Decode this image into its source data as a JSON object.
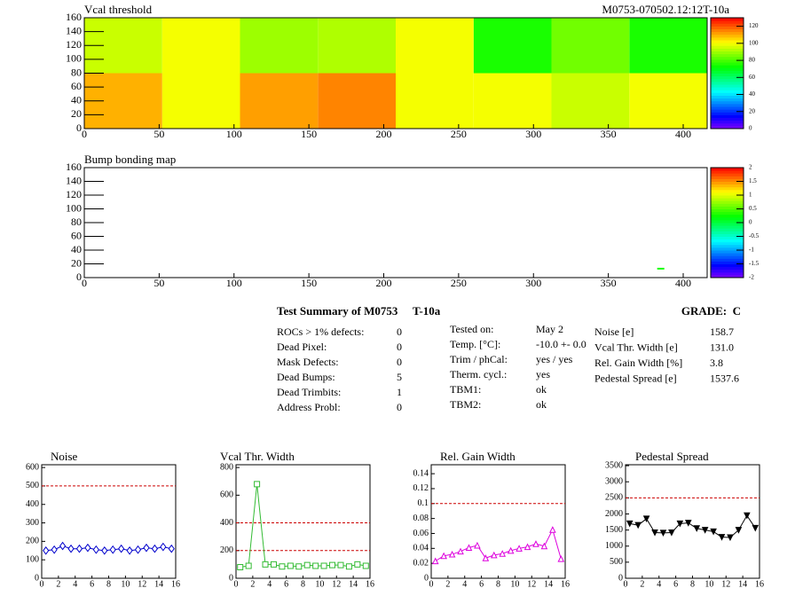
{
  "chart_data": [
    {
      "type": "heatmap",
      "title": "Vcal threshold",
      "subtitle": "M0753-070502.12:12T-10a",
      "x": [
        0,
        52,
        104,
        156,
        208,
        260,
        312,
        364,
        416
      ],
      "y": [
        0,
        80,
        160
      ],
      "values": [
        [
          110,
          100,
          112,
          115,
          100,
          100,
          95,
          100
        ],
        [
          95,
          100,
          90,
          92,
          100,
          75,
          85,
          75
        ]
      ],
      "xlim": [
        0,
        416
      ],
      "ylim": [
        0,
        160
      ],
      "xticks": [
        0,
        50,
        100,
        150,
        200,
        250,
        300,
        350,
        400
      ],
      "yticks": [
        0,
        20,
        40,
        60,
        80,
        100,
        120,
        140,
        160
      ],
      "zlim": [
        0,
        130
      ],
      "zticks": [
        0,
        20,
        40,
        60,
        80,
        100,
        120
      ]
    },
    {
      "type": "pixelmap",
      "title": "Bump bonding map",
      "x": [
        385
      ],
      "y": [
        13
      ],
      "values": [
        0.3
      ],
      "xlim": [
        0,
        416
      ],
      "ylim": [
        0,
        160
      ],
      "xticks": [
        0,
        50,
        100,
        150,
        200,
        250,
        300,
        350,
        400
      ],
      "yticks": [
        0,
        20,
        40,
        60,
        80,
        100,
        120,
        140,
        160
      ],
      "zlim": [
        -2,
        2
      ],
      "zticks": [
        -2,
        -1.5,
        -1,
        -0.5,
        0,
        0.5,
        1,
        1.5,
        2
      ]
    },
    {
      "type": "line",
      "title": "Noise",
      "color": "#0000cc",
      "marker": "diamond",
      "x": [
        0.5,
        1.5,
        2.5,
        3.5,
        4.5,
        5.5,
        6.5,
        7.5,
        8.5,
        9.5,
        10.5,
        11.5,
        12.5,
        13.5,
        14.5,
        15.5
      ],
      "values": [
        150,
        155,
        175,
        160,
        160,
        165,
        155,
        150,
        155,
        160,
        150,
        155,
        165,
        160,
        170,
        160
      ],
      "hlines": [
        500
      ],
      "xlim": [
        0,
        16
      ],
      "xticks": [
        0,
        2,
        4,
        6,
        8,
        10,
        12,
        14,
        16
      ],
      "ylim": [
        0,
        615
      ],
      "yticks": [
        0,
        100,
        200,
        300,
        400,
        500,
        600
      ]
    },
    {
      "type": "line",
      "title": "Vcal Thr. Width",
      "color": "#33bb33",
      "marker": "square",
      "x": [
        0.5,
        1.5,
        2.5,
        3.5,
        4.5,
        5.5,
        6.5,
        7.5,
        8.5,
        9.5,
        10.5,
        11.5,
        12.5,
        13.5,
        14.5,
        15.5
      ],
      "values": [
        80,
        90,
        680,
        100,
        100,
        85,
        90,
        85,
        95,
        90,
        90,
        95,
        95,
        85,
        100,
        90
      ],
      "hlines": [
        200,
        400
      ],
      "xlim": [
        0,
        16
      ],
      "xticks": [
        0,
        2,
        4,
        6,
        8,
        10,
        12,
        14,
        16
      ],
      "ylim": [
        0,
        820
      ],
      "yticks": [
        0,
        200,
        400,
        600,
        800
      ]
    },
    {
      "type": "line",
      "title": "Rel. Gain Width",
      "color": "#dd00dd",
      "marker": "triangle",
      "x": [
        0.5,
        1.5,
        2.5,
        3.5,
        4.5,
        5.5,
        6.5,
        7.5,
        8.5,
        9.5,
        10.5,
        11.5,
        12.5,
        13.5,
        14.5,
        15.5
      ],
      "values": [
        0.023,
        0.03,
        0.032,
        0.036,
        0.041,
        0.044,
        0.027,
        0.031,
        0.033,
        0.037,
        0.04,
        0.042,
        0.046,
        0.043,
        0.065,
        0.026
      ],
      "hlines": [
        0.1
      ],
      "xlim": [
        0,
        16
      ],
      "xticks": [
        0,
        2,
        4,
        6,
        8,
        10,
        12,
        14,
        16
      ],
      "ylim": [
        0,
        0.152
      ],
      "yticks": [
        0,
        0.02,
        0.04,
        0.06,
        0.08,
        0.1,
        0.12,
        0.14
      ]
    },
    {
      "type": "line",
      "title": "Pedestal Spread",
      "color": "#000000",
      "marker": "triangle-down",
      "x": [
        0.5,
        1.5,
        2.5,
        3.5,
        4.5,
        5.5,
        6.5,
        7.5,
        8.5,
        9.5,
        10.5,
        11.5,
        12.5,
        13.5,
        14.5,
        15.5
      ],
      "values": [
        1700,
        1650,
        1850,
        1420,
        1410,
        1420,
        1700,
        1720,
        1550,
        1500,
        1450,
        1280,
        1270,
        1500,
        1950,
        1560
      ],
      "hlines": [
        2500
      ],
      "xlim": [
        0,
        16
      ],
      "xticks": [
        0,
        2,
        4,
        6,
        8,
        10,
        12,
        14,
        16
      ],
      "ylim": [
        0,
        3530
      ],
      "yticks": [
        0,
        500,
        1000,
        1500,
        2000,
        2500,
        3000,
        3500
      ]
    }
  ],
  "summary": {
    "title": "Test Summary of M0753",
    "temperature": "T-10a",
    "grade": "GRADE:  C",
    "defects": [
      [
        "ROCs > 1% defects:",
        "0"
      ],
      [
        "Dead Pixel:",
        "0"
      ],
      [
        "Mask Defects:",
        "0"
      ],
      [
        "Dead Bumps:",
        "5"
      ],
      [
        "Dead Trimbits:",
        "1"
      ],
      [
        "Address Probl:",
        "0"
      ]
    ],
    "conditions": [
      [
        "Tested on:",
        "May 2"
      ],
      [
        "Temp. [°C]:",
        "-10.0 +- 0.0"
      ],
      [
        "Trim / phCal:",
        "yes / yes"
      ],
      [
        "Therm. cycl.:",
        "yes"
      ],
      [
        "TBM1:",
        "ok"
      ],
      [
        "TBM2:",
        "ok"
      ]
    ],
    "results": [
      [
        "Noise [e]",
        "158.7"
      ],
      [
        "Vcal Thr. Width [e]",
        "131.0"
      ],
      [
        "Rel. Gain Width [%]",
        "3.8"
      ],
      [
        "Pedestal Spread [e]",
        "1537.6"
      ]
    ]
  }
}
